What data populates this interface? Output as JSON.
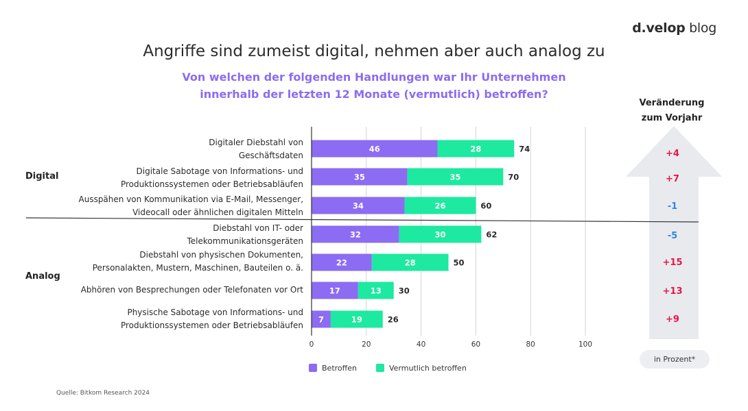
{
  "logo": {
    "brand": "d.velop",
    "suffix": " blog"
  },
  "title": "Angriffe sind zumeist digital, nehmen aber auch analog zu",
  "subtitle_lines": [
    "Von welchen der folgenden Handlungen war Ihr Unternehmen",
    "innerhalb der letzten 12 Monate (vermutlich) betroffen?"
  ],
  "change_header": [
    "Veränderung",
    "zum Vorjahr"
  ],
  "groups": {
    "digital": "Digital",
    "analog": "Analog"
  },
  "rows": [
    {
      "label": [
        "Digitaler Diebstahl von",
        "Geschäftsdaten"
      ],
      "change": "+4"
    },
    {
      "label": [
        "Digitale Sabotage von Informations- und",
        "Produktionssystemen oder Betriebsabläufen"
      ],
      "change": "+7"
    },
    {
      "label": [
        "Ausspähen von Kommunikation via E-Mail, Messenger,",
        "Videocall oder ähnlichen digitalen Mitteln"
      ],
      "change": "-1"
    },
    {
      "label": [
        "Diebstahl von IT- oder",
        "Telekommunikationsgeräten"
      ],
      "change": "-5"
    },
    {
      "label": [
        "Diebstahl von physischen Dokumenten,",
        "Personalakten, Mustern, Maschinen, Bauteilen o. ä."
      ],
      "change": "+15"
    },
    {
      "label": [
        "Abhören von Besprechungen oder Telefonaten vor Ort"
      ],
      "change": "+13"
    },
    {
      "label": [
        "Physische Sabotage von Informations- und",
        "Produktionssystemen oder Betriebsabläufen"
      ],
      "change": "+9"
    }
  ],
  "unit_note": "in Prozent*",
  "source": "Quelle:  Bitkom Research 2024",
  "colors": {
    "betroffen": "#8c6cf2",
    "vermutlich": "#1de9a0",
    "positive": "#e8154a",
    "negative": "#2f86e8",
    "arrow": "#e8eaee"
  },
  "chart_data": {
    "type": "bar",
    "orientation": "horizontal",
    "stacked": true,
    "categories": [
      "Digitaler Diebstahl von Geschäftsdaten",
      "Digitale Sabotage von Informations- und Produktionssystemen oder Betriebsabläufen",
      "Ausspähen von Kommunikation via E-Mail, Messenger, Videocall oder ähnlichen digitalen Mitteln",
      "Diebstahl von IT- oder Telekommunikationsgeräten",
      "Diebstahl von physischen Dokumenten, Personalakten, Mustern, Maschinen, Bauteilen o. ä.",
      "Abhören von Besprechungen oder Telefonaten vor Ort",
      "Physische Sabotage von Informations- und Produktionssystemen oder Betriebsabläufen"
    ],
    "series": [
      {
        "name": "Betroffen",
        "values": [
          46,
          35,
          34,
          32,
          22,
          17,
          7
        ]
      },
      {
        "name": "Vermutlich betroffen",
        "values": [
          28,
          35,
          26,
          30,
          28,
          13,
          19
        ]
      }
    ],
    "totals": [
      74,
      70,
      60,
      62,
      50,
      30,
      26
    ],
    "xlim": [
      0,
      100
    ],
    "xticks": [
      0,
      20,
      40,
      60,
      80,
      100
    ],
    "grid": true,
    "legend": "bottom-center",
    "title": "Angriffe sind zumeist digital, nehmen aber auch analog zu"
  }
}
